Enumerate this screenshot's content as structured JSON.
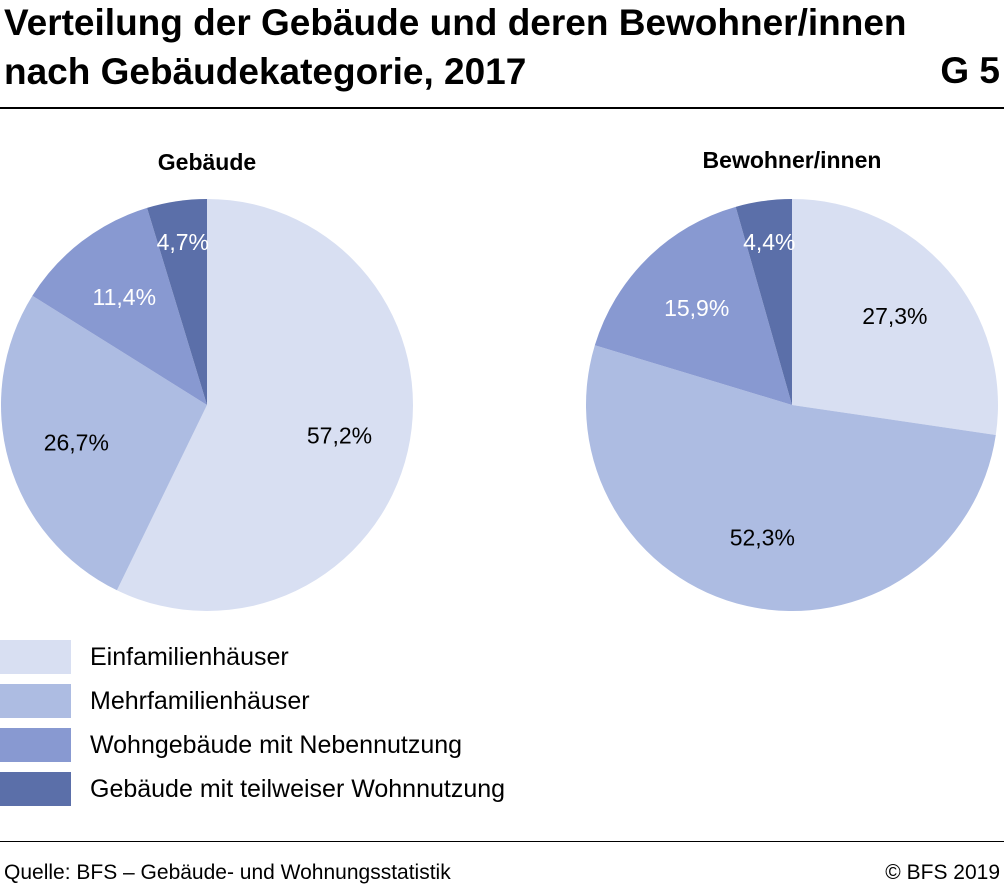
{
  "header": {
    "title": "Verteilung der Gebäude und deren Bewohner/innen nach Gebäudekategorie, 2017",
    "figure_number": "G 5"
  },
  "chart_data": [
    {
      "type": "pie",
      "title": "Gebäude",
      "categories": [
        "Einfamilienhäuser",
        "Mehrfamilienhäuser",
        "Wohngebäude mit Nebennutzung",
        "Gebäude mit teilweiser Wohnnutzung"
      ],
      "values": [
        57.2,
        26.7,
        11.4,
        4.7
      ],
      "labels": [
        "57,2%",
        "26,7%",
        "11,4%",
        "4,7%"
      ],
      "start_angle": "12 o'clock",
      "direction": "clockwise",
      "legend_position": "bottom-left"
    },
    {
      "type": "pie",
      "title": "Bewohner/innen",
      "categories": [
        "Einfamilienhäuser",
        "Mehrfamilienhäuser",
        "Wohngebäude mit Nebennutzung",
        "Gebäude mit teilweiser Wohnnutzung"
      ],
      "values": [
        27.3,
        52.3,
        15.9,
        4.4
      ],
      "labels": [
        "27,3%",
        "52,3%",
        "15,9%",
        "4,4%"
      ],
      "start_angle": "12 o'clock",
      "direction": "clockwise",
      "legend_position": "bottom-left"
    }
  ],
  "colors": [
    "#d8dff2",
    "#adbce2",
    "#8899d1",
    "#5b6fa9"
  ],
  "label_colors": [
    "#000000",
    "#000000",
    "#ffffff",
    "#ffffff"
  ],
  "legend": {
    "items": [
      {
        "label": "Einfamilienhäuser",
        "color": "#d8dff2"
      },
      {
        "label": "Mehrfamilienhäuser",
        "color": "#adbce2"
      },
      {
        "label": "Wohngebäude mit Nebennutzung",
        "color": "#8899d1"
      },
      {
        "label": "Gebäude mit teilweiser Wohnnutzung",
        "color": "#5b6fa9"
      }
    ]
  },
  "footer": {
    "source": "Quelle: BFS – Gebäude- und Wohnungsstatistik",
    "copyright": "© BFS 2019"
  }
}
